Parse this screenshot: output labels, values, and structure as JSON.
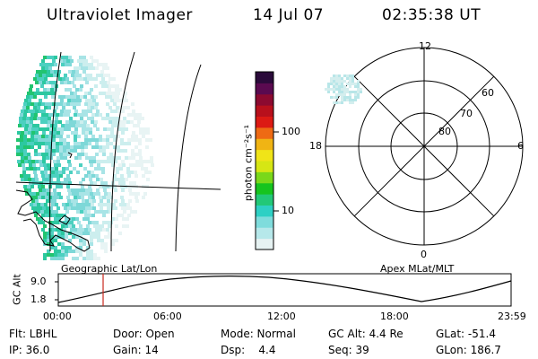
{
  "header": {
    "instrument": "Ultraviolet Imager",
    "date": "14 Jul 07",
    "time": "02:35:38 UT"
  },
  "colorbar": {
    "label": "photon cm⁻²s⁻¹",
    "ticks": [
      "100",
      "10"
    ],
    "colors": [
      "#e6f2f2",
      "#b6e8ea",
      "#7fdcdc",
      "#2ed0c4",
      "#22c878",
      "#16c41e",
      "#7ad81a",
      "#d6e614",
      "#f0e418",
      "#f0b414",
      "#ee6a14",
      "#dc1a14",
      "#b8101c",
      "#8c0a30",
      "#5a0a50",
      "#2a0a3a"
    ]
  },
  "polar_plot": {
    "labels": {
      "top": "12",
      "bottom": "0",
      "left": "18",
      "right": "6"
    },
    "lat_labels": [
      "60",
      "70",
      "80"
    ]
  },
  "timeline": {
    "ylabel": "GC Alt",
    "yticks": [
      "9.0",
      "1.8"
    ],
    "left_caption": "Geographic Lat/Lon",
    "right_caption": "Apex MLat/MLT",
    "xticks": [
      "00:00",
      "06:00",
      "12:00",
      "18:00",
      "23:59"
    ],
    "marker_color": "#c8281e"
  },
  "info": {
    "flt": "Flt: LBHL",
    "ip": "IP: 36.0",
    "door": "Door: Open",
    "gain": "Gain: 14",
    "mode": "Mode: Normal",
    "dsp": "Dsp:    4.4",
    "gcalt": "GC Alt: 4.4 Re",
    "seq": "Seq: 39",
    "glat": "GLat: -51.4",
    "glon": "GLon: 186.7"
  }
}
